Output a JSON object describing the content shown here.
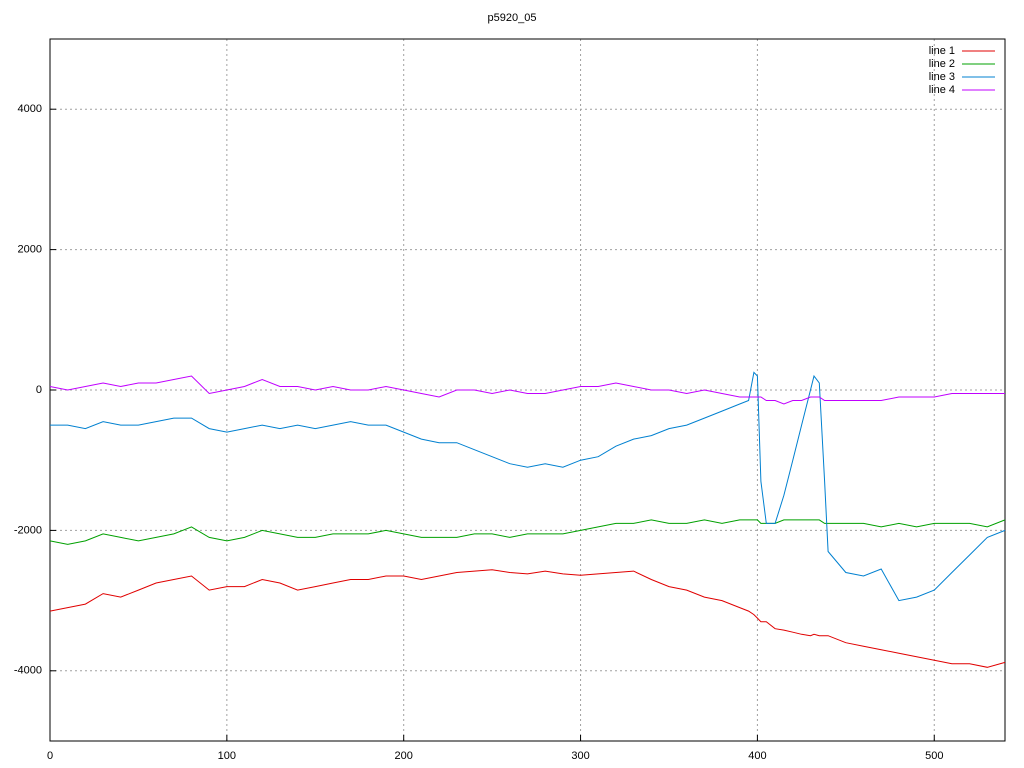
{
  "chart_data": {
    "type": "line",
    "title": "p5920_05",
    "x": [
      0,
      10,
      20,
      30,
      40,
      50,
      60,
      70,
      80,
      90,
      100,
      110,
      120,
      130,
      140,
      150,
      160,
      170,
      180,
      190,
      200,
      210,
      220,
      230,
      240,
      250,
      260,
      270,
      280,
      290,
      300,
      310,
      320,
      330,
      340,
      350,
      360,
      370,
      380,
      390,
      395,
      398,
      400,
      402,
      405,
      410,
      415,
      420,
      425,
      430,
      432,
      435,
      438,
      440,
      450,
      460,
      470,
      480,
      490,
      500,
      510,
      520,
      530,
      540
    ],
    "series": [
      {
        "name": "line 1",
        "color": "#e00000",
        "values": [
          -3150,
          -3100,
          -3050,
          -2900,
          -2950,
          -2850,
          -2750,
          -2700,
          -2650,
          -2850,
          -2800,
          -2800,
          -2700,
          -2750,
          -2850,
          -2800,
          -2750,
          -2700,
          -2700,
          -2650,
          -2650,
          -2700,
          -2650,
          -2600,
          -2580,
          -2560,
          -2600,
          -2620,
          -2580,
          -2620,
          -2640,
          -2620,
          -2600,
          -2580,
          -2700,
          -2800,
          -2850,
          -2950,
          -3000,
          -3100,
          -3150,
          -3200,
          -3250,
          -3300,
          -3300,
          -3400,
          -3420,
          -3450,
          -3480,
          -3500,
          -3480,
          -3500,
          -3500,
          -3500,
          -3600,
          -3650,
          -3700,
          -3750,
          -3800,
          -3850,
          -3900,
          -3900,
          -3950,
          -3880
        ]
      },
      {
        "name": "line 2",
        "color": "#00a000",
        "values": [
          -2150,
          -2200,
          -2150,
          -2050,
          -2100,
          -2150,
          -2100,
          -2050,
          -1950,
          -2100,
          -2150,
          -2100,
          -2000,
          -2050,
          -2100,
          -2100,
          -2050,
          -2050,
          -2050,
          -2000,
          -2050,
          -2100,
          -2100,
          -2100,
          -2050,
          -2050,
          -2100,
          -2050,
          -2050,
          -2050,
          -2000,
          -1950,
          -1900,
          -1900,
          -1850,
          -1900,
          -1900,
          -1850,
          -1900,
          -1850,
          -1850,
          -1850,
          -1850,
          -1900,
          -1900,
          -1900,
          -1850,
          -1850,
          -1850,
          -1850,
          -1850,
          -1850,
          -1900,
          -1900,
          -1900,
          -1900,
          -1950,
          -1900,
          -1950,
          -1900,
          -1900,
          -1900,
          -1950,
          -1850
        ]
      },
      {
        "name": "line 3",
        "color": "#0080d0",
        "values": [
          -500,
          -500,
          -550,
          -450,
          -500,
          -500,
          -450,
          -400,
          -400,
          -550,
          -600,
          -550,
          -500,
          -550,
          -500,
          -550,
          -500,
          -450,
          -500,
          -500,
          -600,
          -700,
          -750,
          -750,
          -850,
          -950,
          -1050,
          -1100,
          -1050,
          -1100,
          -1000,
          -950,
          -800,
          -700,
          -650,
          -550,
          -500,
          -400,
          -300,
          -200,
          -150,
          250,
          200,
          -1300,
          -1900,
          -1900,
          -1500,
          -1000,
          -500,
          0,
          200,
          100,
          -1300,
          -2300,
          -2600,
          -2650,
          -2550,
          -3000,
          -2950,
          -2850,
          -2600,
          -2350,
          -2100,
          -2000
        ]
      },
      {
        "name": "line 4",
        "color": "#c000ff",
        "values": [
          50,
          0,
          50,
          100,
          50,
          100,
          100,
          150,
          200,
          -50,
          0,
          50,
          150,
          50,
          50,
          0,
          50,
          0,
          0,
          50,
          0,
          -50,
          -100,
          0,
          0,
          -50,
          0,
          -50,
          -50,
          0,
          50,
          50,
          100,
          50,
          0,
          0,
          -50,
          0,
          -50,
          -100,
          -100,
          -100,
          -100,
          -100,
          -150,
          -150,
          -200,
          -150,
          -150,
          -100,
          -100,
          -100,
          -150,
          -150,
          -150,
          -150,
          -150,
          -100,
          -100,
          -100,
          -50,
          -50,
          -50,
          -50
        ]
      }
    ],
    "xlim": [
      0,
      540
    ],
    "ylim": [
      -5000,
      5000
    ],
    "xticks": [
      0,
      100,
      200,
      300,
      400,
      500
    ],
    "yticks": [
      -4000,
      -2000,
      0,
      2000,
      4000
    ],
    "grid": true,
    "legend": "top-right"
  }
}
